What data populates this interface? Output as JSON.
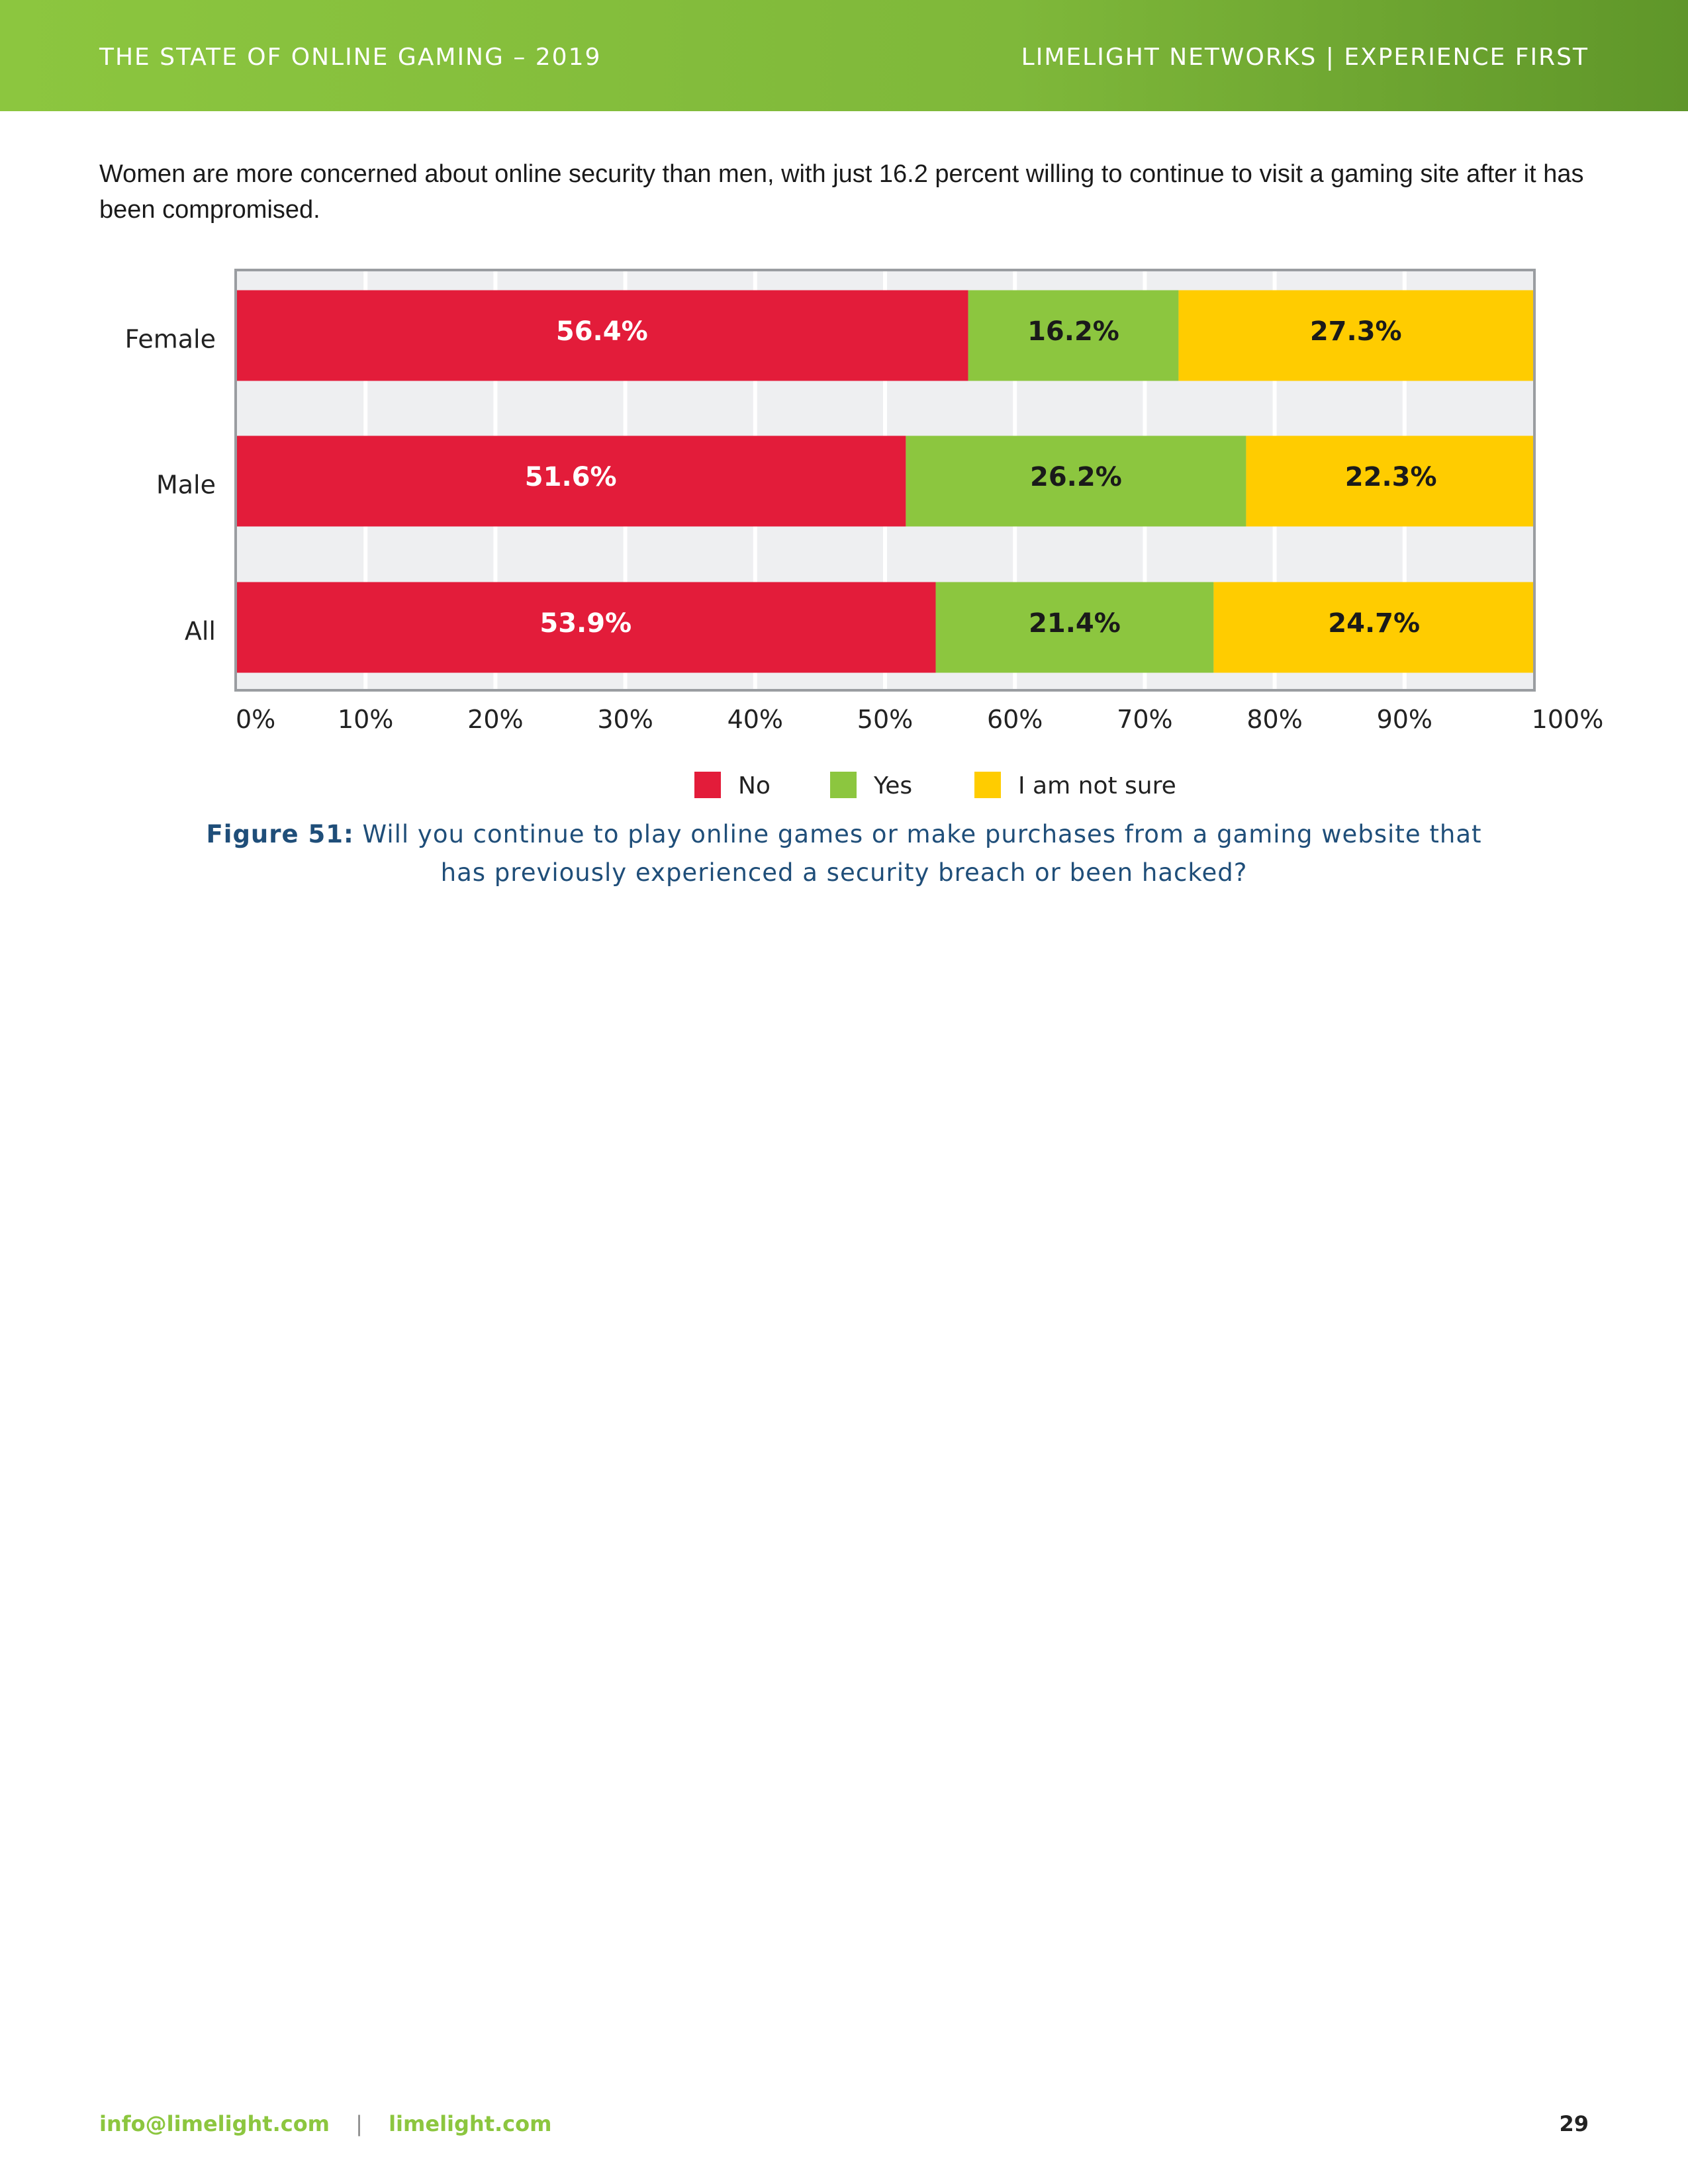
{
  "header": {
    "left_title": "THE STATE OF ONLINE GAMING – 2019",
    "right_title": "LIMELIGHT NETWORKS | EXPERIENCE FIRST"
  },
  "intro_text": "Women are more concerned about online security than men, with just 16.2 percent willing to continue to visit a gaming site after it has been compromised.",
  "figure": {
    "label": "Figure 51:",
    "caption": "Will you continue to play online games or make purchases from a gaming website that has previously experienced a security breach or been hacked?"
  },
  "chart_data": {
    "type": "bar",
    "orientation": "horizontal",
    "stacked": true,
    "categories": [
      "Female",
      "Male",
      "All"
    ],
    "series": [
      {
        "name": "No",
        "values": [
          56.4,
          51.6,
          53.9
        ],
        "labels": [
          "56.4%",
          "51.6%",
          "53.9%"
        ],
        "color": "#e31c3a",
        "label_color": "#ffffff"
      },
      {
        "name": "Yes",
        "values": [
          16.2,
          26.2,
          21.4
        ],
        "labels": [
          "16.2%",
          "26.2%",
          "21.4%"
        ],
        "color": "#8cc63f",
        "label_color": "#1a1a1a"
      },
      {
        "name": "I am not sure",
        "values": [
          27.3,
          22.3,
          24.7
        ],
        "labels": [
          "27.3%",
          "22.3%",
          "24.7%"
        ],
        "color": "#ffcc00",
        "label_color": "#1a1a1a"
      }
    ],
    "x_ticks": [
      "0%",
      "10%",
      "20%",
      "30%",
      "40%",
      "50%",
      "60%",
      "70%",
      "80%",
      "90%",
      "100%"
    ],
    "xlim": [
      0,
      100
    ],
    "grid": true,
    "legend_position": "bottom-center",
    "colors": {
      "plot_background": "#eeeff1",
      "frame": "#9a9da1",
      "gridline": "#ffffff"
    }
  },
  "footer": {
    "email": "info@limelight.com",
    "separator": "|",
    "website": "limelight.com",
    "page_number": "29"
  }
}
